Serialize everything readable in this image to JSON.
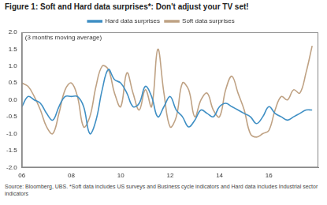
{
  "chart_data": {
    "type": "line",
    "title": "Figure 1: Soft and Hard data surprises*: Don't adjust your TV set!",
    "annotation": "(3 months moving average)",
    "source": "Source:  Bloomberg, UBS. *Soft data includes US surveys and Business cycle indicators and Hard data includes Industrial sector indicators",
    "x": [
      2006,
      2006.25,
      2006.5,
      2006.75,
      2007,
      2007.25,
      2007.5,
      2007.75,
      2008,
      2008.25,
      2008.5,
      2008.75,
      2009,
      2009.25,
      2009.5,
      2009.75,
      2010,
      2010.25,
      2010.5,
      2010.75,
      2011,
      2011.25,
      2011.5,
      2011.75,
      2012,
      2012.25,
      2012.5,
      2012.75,
      2013,
      2013.25,
      2013.5,
      2013.75,
      2014,
      2014.25,
      2014.5,
      2014.75,
      2015,
      2015.25,
      2015.5,
      2015.75,
      2016,
      2016.25,
      2016.5,
      2016.75,
      2017,
      2017.25,
      2017.5,
      2017.75
    ],
    "series": [
      {
        "name": "Hard data surprises",
        "color": "#3f8fc4",
        "values": [
          -0.2,
          0.1,
          0.0,
          -0.1,
          -0.4,
          -0.6,
          -0.2,
          0.1,
          0.1,
          0.1,
          -0.2,
          -1.0,
          -0.6,
          0.3,
          0.9,
          0.6,
          0.5,
          0.2,
          -0.2,
          -0.1,
          0.4,
          0.1,
          -0.5,
          -0.2,
          0.1,
          -0.3,
          -0.5,
          -0.8,
          -0.6,
          -0.3,
          -0.4,
          -0.5,
          -0.2,
          -0.1,
          -0.2,
          -0.3,
          -0.4,
          -0.5,
          -0.7,
          -0.5,
          -0.2,
          -0.4,
          -0.5,
          -0.6,
          -0.5,
          -0.4,
          -0.3,
          -0.3
        ]
      },
      {
        "name": "Soft data surprises",
        "color": "#bfa284",
        "values": [
          0.5,
          0.4,
          0.1,
          -0.3,
          -0.8,
          -1.0,
          -0.4,
          0.3,
          0.5,
          0.1,
          -0.8,
          -0.5,
          0.4,
          1.0,
          0.9,
          0.2,
          -0.2,
          0.8,
          0.2,
          -0.3,
          0.3,
          -0.2,
          1.5,
          0.2,
          -0.8,
          -0.5,
          0.5,
          0.3,
          -0.5,
          0.0,
          0.2,
          -0.3,
          -0.5,
          0.3,
          0.7,
          0.2,
          -0.3,
          -1.0,
          -1.1,
          -1.0,
          -0.9,
          -0.3,
          0.1,
          0.0,
          0.3,
          0.2,
          0.8,
          1.6
        ]
      }
    ],
    "xlim": [
      2006,
      2018
    ],
    "xticks": [
      {
        "value": 2006,
        "label": "06"
      },
      {
        "value": 2008,
        "label": "08"
      },
      {
        "value": 2010,
        "label": "10"
      },
      {
        "value": 2012,
        "label": "12"
      },
      {
        "value": 2014,
        "label": "14"
      },
      {
        "value": 2016,
        "label": "16"
      }
    ],
    "ylim": [
      -2,
      2
    ],
    "yticks": [
      {
        "value": -2,
        "label": "-2.0"
      },
      {
        "value": -1.5,
        "label": "-1.5"
      },
      {
        "value": -1,
        "label": "-1.0"
      },
      {
        "value": -0.5,
        "label": "-0.5"
      },
      {
        "value": 0,
        "label": "0.0"
      },
      {
        "value": 0.5,
        "label": "0.5"
      },
      {
        "value": 1,
        "label": "1.0"
      },
      {
        "value": 1.5,
        "label": "1.5"
      },
      {
        "value": 2,
        "label": "2.0"
      }
    ],
    "grid": false,
    "legend": "top"
  }
}
